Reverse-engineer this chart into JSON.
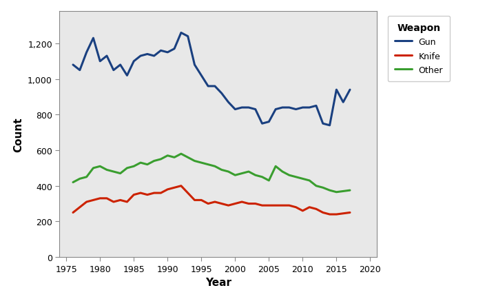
{
  "years": [
    1976,
    1977,
    1978,
    1979,
    1980,
    1981,
    1982,
    1983,
    1984,
    1985,
    1986,
    1987,
    1988,
    1989,
    1990,
    1991,
    1992,
    1993,
    1994,
    1995,
    1996,
    1997,
    1998,
    1999,
    2000,
    2001,
    2002,
    2003,
    2004,
    2005,
    2006,
    2007,
    2008,
    2009,
    2010,
    2011,
    2012,
    2013,
    2014,
    2015,
    2016,
    2017
  ],
  "gun": [
    1080,
    1050,
    1150,
    1230,
    1100,
    1130,
    1050,
    1080,
    1020,
    1100,
    1130,
    1140,
    1130,
    1160,
    1150,
    1170,
    1260,
    1240,
    1080,
    1020,
    960,
    960,
    920,
    870,
    830,
    840,
    840,
    830,
    750,
    760,
    830,
    840,
    840,
    830,
    840,
    840,
    850,
    750,
    740,
    940,
    870,
    940
  ],
  "knife": [
    250,
    280,
    310,
    320,
    330,
    330,
    310,
    320,
    310,
    350,
    360,
    350,
    360,
    360,
    380,
    390,
    400,
    360,
    320,
    320,
    300,
    310,
    300,
    290,
    300,
    310,
    300,
    300,
    290,
    290,
    290,
    290,
    290,
    280,
    260,
    280,
    270,
    250,
    240,
    240,
    245,
    250
  ],
  "other": [
    420,
    440,
    450,
    500,
    510,
    490,
    480,
    470,
    500,
    510,
    530,
    520,
    540,
    550,
    570,
    560,
    580,
    560,
    540,
    530,
    520,
    510,
    490,
    480,
    460,
    470,
    480,
    460,
    450,
    430,
    510,
    480,
    460,
    450,
    440,
    430,
    400,
    390,
    375,
    365,
    370,
    375
  ],
  "gun_color": "#1a4080",
  "knife_color": "#cc2200",
  "other_color": "#3a9e2f",
  "bg_color": "#e8e8e8",
  "fig_color": "#ffffff",
  "xlabel": "Year",
  "ylabel": "Count",
  "legend_title": "Weapon",
  "legend_labels": [
    "Gun",
    "Knife",
    "Other"
  ],
  "xlim": [
    1974,
    2021
  ],
  "ylim": [
    0,
    1380
  ],
  "xticks": [
    1975,
    1980,
    1985,
    1990,
    1995,
    2000,
    2005,
    2010,
    2015,
    2020
  ],
  "yticks": [
    0,
    200,
    400,
    600,
    800,
    1000,
    1200
  ],
  "ytick_labels": [
    "0",
    "200",
    "400",
    "600",
    "800",
    "1,000",
    "1,200"
  ],
  "linewidth": 2.2
}
